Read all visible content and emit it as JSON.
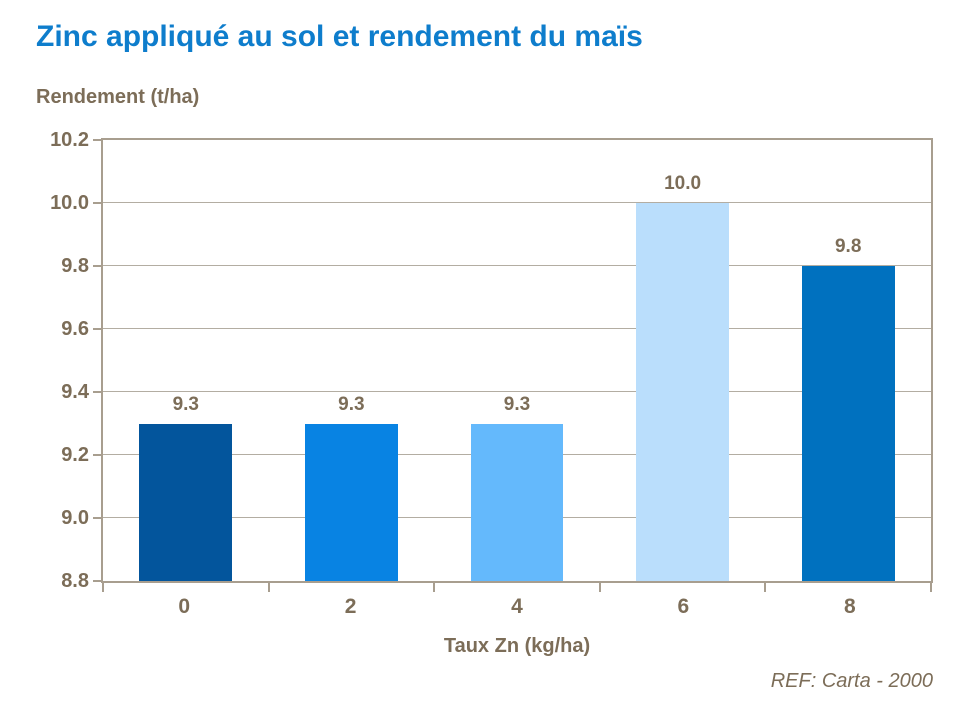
{
  "header": {
    "title": "Zinc appliqué au sol et rendement du maïs"
  },
  "chart_data": {
    "type": "bar",
    "title": "Zinc appliqué au sol et rendement du maïs",
    "xlabel": "Taux Zn (kg/ha)",
    "ylabel": "Rendement (t/ha)",
    "categories": [
      "0",
      "2",
      "4",
      "6",
      "8"
    ],
    "values": [
      9.3,
      9.3,
      9.3,
      10.0,
      9.8
    ],
    "value_labels": [
      "9.3",
      "9.3",
      "9.3",
      "10.0",
      "9.8"
    ],
    "ylim": [
      8.8,
      10.2
    ],
    "yticks": [
      8.8,
      9.0,
      9.2,
      9.4,
      9.6,
      9.8,
      10.0,
      10.2
    ],
    "ytick_labels": [
      "8.8",
      "9.0",
      "9.2",
      "9.4",
      "9.6",
      "9.8",
      "10.0",
      "10.2"
    ],
    "gridlines_at": [
      9.0,
      9.2,
      9.4,
      9.6,
      9.8,
      10.0
    ],
    "grid": true,
    "legend": "none",
    "bar_colors": [
      "#03559c",
      "#0883e3",
      "#64b9fc",
      "#badefc",
      "#0071bf"
    ]
  },
  "colors": {
    "title_blue": "#0e7dcc",
    "text_brown": "#7c6d58",
    "axis_border": "#a89e8f",
    "gridline": "#b3ada2",
    "background": "#ffffff"
  },
  "footer": {
    "reference": "REF: Carta - 2000"
  }
}
